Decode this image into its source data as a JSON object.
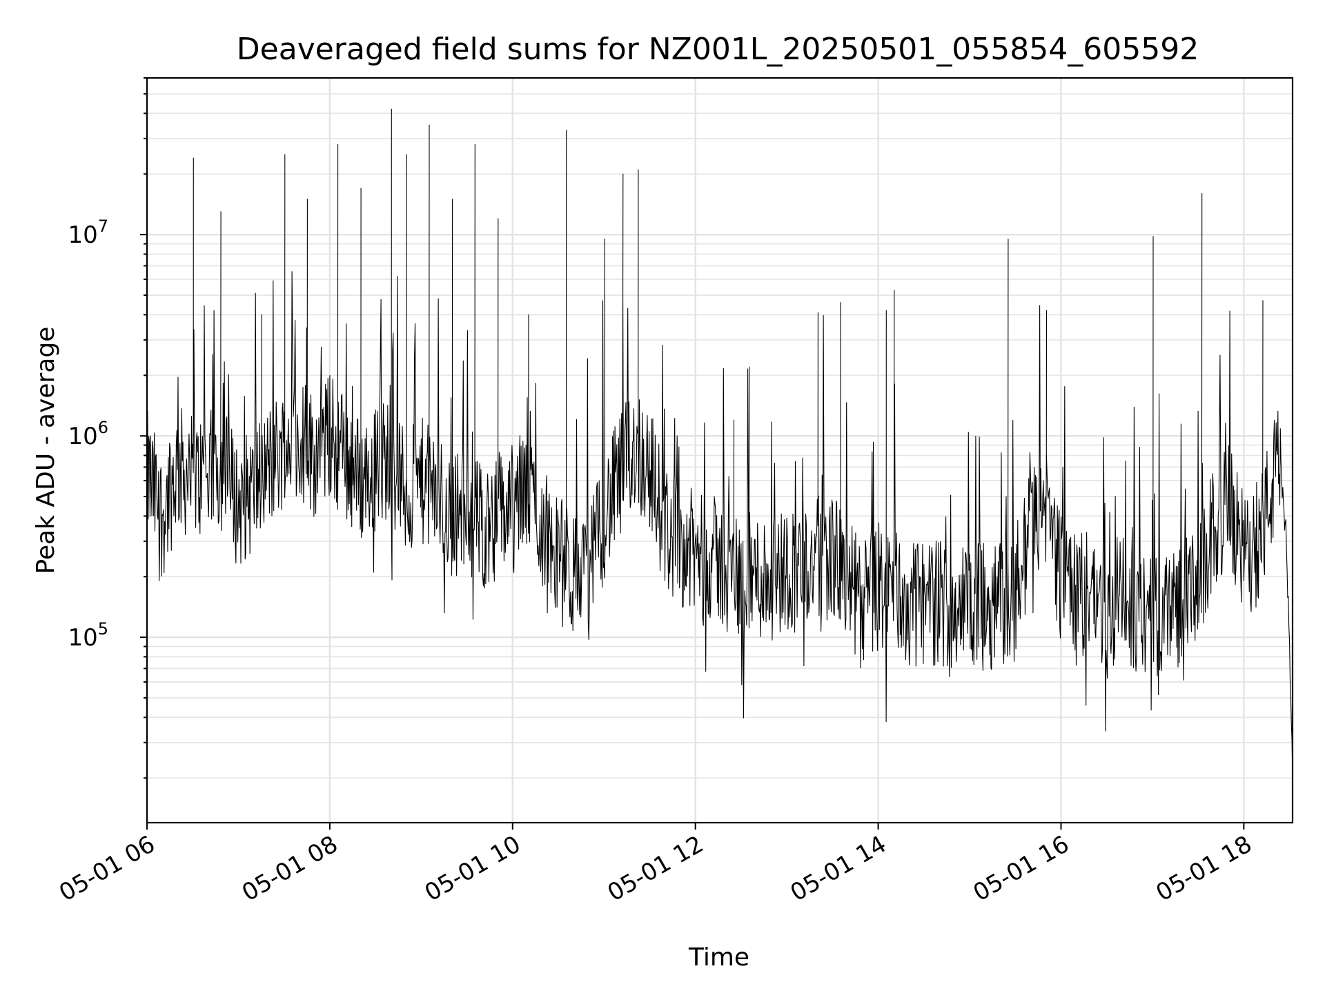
{
  "chart_data": {
    "type": "line",
    "title": "Deaveraged field sums for NZ001L_20250501_055854_605592",
    "xlabel": "Time",
    "ylabel": "Peak ADU - average",
    "x_scale": "time",
    "y_scale": "log",
    "xlim": [
      "2025-05-01 06:00",
      "2025-05-01 18:32"
    ],
    "ylim": [
      12000,
      60000000
    ],
    "grid": true,
    "x_ticks": [
      "05-01 06",
      "05-01 08",
      "05-01 10",
      "05-01 12",
      "05-01 14",
      "05-01 16",
      "05-01 18"
    ],
    "y_ticks": [
      {
        "base": "10",
        "exp": "5",
        "value": 100000
      },
      {
        "base": "10",
        "exp": "6",
        "value": 1000000
      },
      {
        "base": "10",
        "exp": "7",
        "value": 10000000
      }
    ],
    "line_color": "#000000",
    "series": [
      {
        "x": [
          "2025-05-01 06:00",
          "2025-05-01 06:10",
          "2025-05-01 06:20",
          "2025-05-01 06:30",
          "2025-05-01 06:40",
          "2025-05-01 06:50",
          "2025-05-01 07:00",
          "2025-05-01 07:10",
          "2025-05-01 07:20",
          "2025-05-01 07:30",
          "2025-05-01 07:40",
          "2025-05-01 07:50",
          "2025-05-01 08:00",
          "2025-05-01 08:10",
          "2025-05-01 08:20",
          "2025-05-01 08:30",
          "2025-05-01 08:40",
          "2025-05-01 08:50",
          "2025-05-01 09:00",
          "2025-05-01 09:10",
          "2025-05-01 09:20",
          "2025-05-01 09:30",
          "2025-05-01 09:40",
          "2025-05-01 09:50",
          "2025-05-01 10:00",
          "2025-05-01 10:10",
          "2025-05-01 10:20",
          "2025-05-01 10:30",
          "2025-05-01 10:40",
          "2025-05-01 10:50",
          "2025-05-01 11:00",
          "2025-05-01 11:10",
          "2025-05-01 11:20",
          "2025-05-01 11:30",
          "2025-05-01 11:40",
          "2025-05-01 11:50",
          "2025-05-01 12:00",
          "2025-05-01 12:10",
          "2025-05-01 12:20",
          "2025-05-01 12:30",
          "2025-05-01 12:40",
          "2025-05-01 12:50",
          "2025-05-01 13:00",
          "2025-05-01 13:10",
          "2025-05-01 13:20",
          "2025-05-01 13:30",
          "2025-05-01 13:40",
          "2025-05-01 13:50",
          "2025-05-01 14:00",
          "2025-05-01 14:10",
          "2025-05-01 14:20",
          "2025-05-01 14:30",
          "2025-05-01 14:40",
          "2025-05-01 14:50",
          "2025-05-01 15:00",
          "2025-05-01 15:10",
          "2025-05-01 15:20",
          "2025-05-01 15:30",
          "2025-05-01 15:40",
          "2025-05-01 15:50",
          "2025-05-01 16:00",
          "2025-05-01 16:10",
          "2025-05-01 16:20",
          "2025-05-01 16:30",
          "2025-05-01 16:40",
          "2025-05-01 16:50",
          "2025-05-01 17:00",
          "2025-05-01 17:10",
          "2025-05-01 17:20",
          "2025-05-01 17:30",
          "2025-05-01 17:40",
          "2025-05-01 17:50",
          "2025-05-01 18:00",
          "2025-05-01 18:10",
          "2025-05-01 18:20",
          "2025-05-01 18:24",
          "2025-05-01 18:28",
          "2025-05-01 18:32"
        ],
        "values": [
          650000,
          400000,
          700000,
          600000,
          650000,
          700000,
          450000,
          550000,
          700000,
          900000,
          1000000,
          800000,
          1000000,
          800000,
          600000,
          700000,
          800000,
          500000,
          600000,
          500000,
          400000,
          450000,
          350000,
          400000,
          450000,
          550000,
          350000,
          250000,
          200000,
          200000,
          400000,
          600000,
          900000,
          700000,
          350000,
          300000,
          250000,
          250000,
          220000,
          200000,
          200000,
          200000,
          220000,
          220000,
          240000,
          260000,
          180000,
          150000,
          170000,
          180000,
          140000,
          150000,
          150000,
          140000,
          150000,
          140000,
          150000,
          150000,
          350000,
          450000,
          200000,
          150000,
          180000,
          120000,
          150000,
          140000,
          120000,
          140000,
          150000,
          160000,
          350000,
          450000,
          250000,
          300000,
          600000,
          700000,
          300000,
          22000
        ],
        "spike_x": [
          "2025-05-01 06:30",
          "2025-05-01 06:48",
          "2025-05-01 07:15",
          "2025-05-01 07:30",
          "2025-05-01 07:45",
          "2025-05-01 08:05",
          "2025-05-01 08:20",
          "2025-05-01 08:40",
          "2025-05-01 08:50",
          "2025-05-01 09:05",
          "2025-05-01 09:20",
          "2025-05-01 09:35",
          "2025-05-01 09:50",
          "2025-05-01 10:10",
          "2025-05-01 10:35",
          "2025-05-01 11:00",
          "2025-05-01 11:12",
          "2025-05-01 11:22",
          "2025-05-01 12:25",
          "2025-05-01 12:35",
          "2025-05-01 13:20",
          "2025-05-01 13:35",
          "2025-05-01 14:05",
          "2025-05-01 14:10",
          "2025-05-01 15:25",
          "2025-05-01 15:50",
          "2025-05-01 17:00",
          "2025-05-01 17:32",
          "2025-05-01 18:12"
        ],
        "spike_values": [
          24000000,
          13000000,
          4000000,
          25000000,
          15000000,
          28000000,
          17000000,
          42000000,
          25000000,
          35000000,
          15000000,
          28000000,
          12000000,
          4000000,
          33000000,
          9500000,
          20000000,
          21000000,
          1200000,
          2200000,
          4100000,
          4600000,
          4200000,
          5300000,
          9500000,
          4200000,
          9800000,
          16000000,
          4700000
        ]
      }
    ]
  }
}
